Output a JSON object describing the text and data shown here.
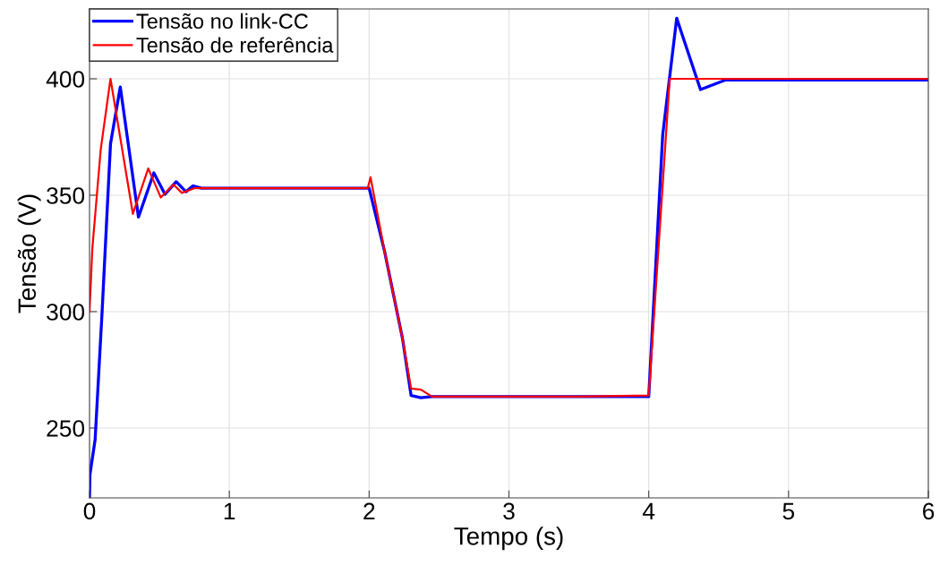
{
  "chart_data": {
    "type": "line",
    "xlabel": "Tempo (s)",
    "ylabel": "Tensão (V)",
    "xlim": [
      0,
      6
    ],
    "ylim": [
      220,
      430
    ],
    "xticks": [
      0,
      1,
      2,
      3,
      4,
      5,
      6
    ],
    "yticks": [
      250,
      300,
      350,
      400
    ],
    "grid": true,
    "legend": "top left",
    "series": [
      {
        "name": "Tensão no link-CC",
        "color": "#0000ff",
        "x": [
          0,
          0.003,
          0.04,
          0.09,
          0.15,
          0.22,
          0.35,
          0.46,
          0.54,
          0.62,
          0.69,
          0.74,
          0.8,
          1.0,
          1.5,
          2.0,
          2.11,
          2.24,
          2.3,
          2.37,
          2.45,
          3.0,
          3.5,
          4.0,
          4.1,
          4.2,
          4.37,
          4.55,
          5.0,
          5.5,
          6.0
        ],
        "values": [
          220,
          230,
          245,
          300,
          372,
          396.5,
          340.6,
          359.6,
          350.4,
          355.8,
          351.5,
          354,
          353,
          353,
          353,
          353,
          326,
          288,
          264,
          263,
          263.5,
          263.5,
          263.5,
          263.5,
          376,
          426,
          395.4,
          399.5,
          399.5,
          399.5,
          399.5
        ]
      },
      {
        "name": "Tensão de referência",
        "color": "#ff0000",
        "x": [
          0,
          0.02,
          0.08,
          0.15,
          0.31,
          0.42,
          0.51,
          0.6,
          0.66,
          0.75,
          1.0,
          1.5,
          1.99,
          2.01,
          2.11,
          2.24,
          2.3,
          2.37,
          2.45,
          3.0,
          3.5,
          4.0,
          4.15,
          5.0,
          6.0
        ],
        "values": [
          300,
          327,
          369.6,
          400,
          342,
          361.5,
          349,
          354.6,
          351,
          353,
          353,
          353,
          353,
          357.7,
          326,
          288,
          267,
          266.5,
          263.5,
          263.5,
          263.5,
          264,
          400,
          400,
          400
        ]
      }
    ]
  }
}
